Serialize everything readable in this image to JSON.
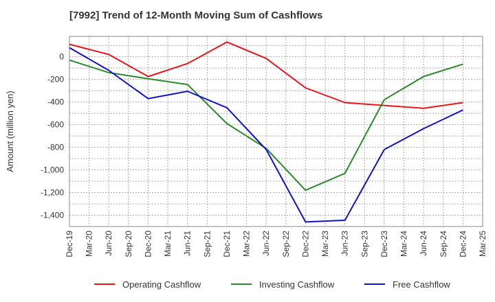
{
  "chart_data": {
    "type": "line",
    "title": "[7992]  Trend of 12-Month Moving Sum of Cashflows",
    "xlabel": "",
    "ylabel": "Amount (million yen)",
    "categories": [
      "Dec-19",
      "Mar-20",
      "Jun-20",
      "Sep-20",
      "Dec-20",
      "Mar-21",
      "Jun-21",
      "Sep-21",
      "Dec-21",
      "Mar-22",
      "Jun-22",
      "Sep-22",
      "Dec-22",
      "Mar-23",
      "Jun-23",
      "Sep-23",
      "Dec-23",
      "Mar-24",
      "Jun-24",
      "Sep-24",
      "Dec-24",
      "Mar-25"
    ],
    "ylim": [
      -1500,
      180
    ],
    "yticks": [
      0,
      -200,
      -400,
      -600,
      -800,
      -1000,
      -1200,
      -1400
    ],
    "ytick_labels": [
      "0",
      "-200",
      "-400",
      "-600",
      "-800",
      "-1,000",
      "-1,200",
      "-1,400"
    ],
    "grid": true,
    "legend_position": "bottom",
    "series": [
      {
        "name": "Operating Cashflow",
        "color": "#e8151b",
        "x": [
          "Dec-19",
          "Jun-20",
          "Dec-20",
          "Jun-21",
          "Dec-21",
          "Jun-22",
          "Dec-22",
          "Jun-23",
          "Dec-23",
          "Jun-24",
          "Dec-24"
        ],
        "values": [
          110,
          20,
          -175,
          -60,
          130,
          -15,
          -275,
          -405,
          -430,
          -455,
          -405
        ]
      },
      {
        "name": "Investing Cashflow",
        "color": "#2a8a2a",
        "x": [
          "Dec-19",
          "Jun-20",
          "Dec-20",
          "Jun-21",
          "Dec-21",
          "Jun-22",
          "Dec-22",
          "Jun-23",
          "Dec-23",
          "Jun-24",
          "Dec-24"
        ],
        "values": [
          -30,
          -140,
          -195,
          -245,
          -590,
          -810,
          -1180,
          -1030,
          -380,
          -175,
          -65
        ]
      },
      {
        "name": "Free Cashflow",
        "color": "#1111cc",
        "x": [
          "Dec-19",
          "Jun-20",
          "Dec-20",
          "Jun-21",
          "Dec-21",
          "Jun-22",
          "Dec-22",
          "Jun-23",
          "Dec-23",
          "Jun-24",
          "Dec-24"
        ],
        "values": [
          80,
          -120,
          -370,
          -305,
          -450,
          -820,
          -1460,
          -1445,
          -820,
          -635,
          -470
        ]
      }
    ]
  }
}
